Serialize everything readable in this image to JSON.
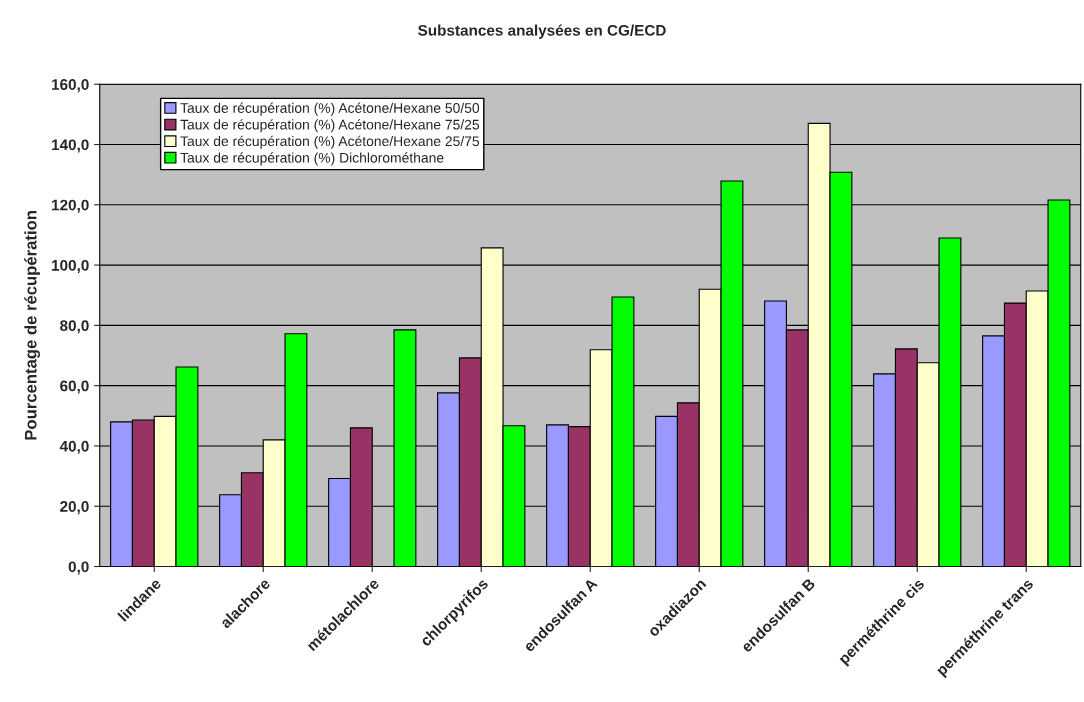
{
  "chart_data": {
    "type": "bar",
    "title": "Substances analysées en CG/ECD",
    "ylabel": "Pourcentage de récupération",
    "categories": [
      "lindane",
      "alachore",
      "métolachlore",
      "chlorpyrifos",
      "endosulfan A",
      "oxadiazon",
      "endosulfan B",
      "perméthrine cis",
      "perméthrine trans"
    ],
    "series": [
      {
        "name": "Taux de récupération (%) Acétone/Hexane 50/50",
        "color": "#9999ff",
        "values": [
          48.0,
          23.8,
          29.2,
          57.6,
          47.0,
          49.8,
          88.1,
          63.9,
          76.5
        ]
      },
      {
        "name": "Taux de récupération (%) Acétone/Hexane 75/25",
        "color": "#993366",
        "values": [
          48.6,
          31.1,
          46.0,
          69.2,
          46.4,
          54.3,
          78.5,
          72.2,
          87.4
        ]
      },
      {
        "name": "Taux de récupération (%) Acétone/Hexane 25/75",
        "color": "#ffffcc",
        "values": [
          49.8,
          42.0,
          null,
          105.7,
          71.9,
          92.0,
          147.0,
          67.6,
          91.4
        ]
      },
      {
        "name": "Taux de récupération (%) Dichlorométhane",
        "color": "#00ff00",
        "values": [
          66.2,
          77.2,
          78.5,
          46.7,
          89.4,
          127.9,
          130.8,
          109.0,
          121.6
        ]
      }
    ],
    "ylim": [
      0,
      160
    ],
    "yticks": [
      {
        "value": 0,
        "label": "0,0"
      },
      {
        "value": 20,
        "label": "20,0"
      },
      {
        "value": 40,
        "label": "40,0"
      },
      {
        "value": 60,
        "label": "60,0"
      },
      {
        "value": 80,
        "label": "80,0"
      },
      {
        "value": 100,
        "label": "100,0"
      },
      {
        "value": 120,
        "label": "120,0"
      },
      {
        "value": 140,
        "label": "140,0"
      },
      {
        "value": 160,
        "label": "160,0"
      }
    ],
    "grid": "y",
    "legend": "top left"
  }
}
